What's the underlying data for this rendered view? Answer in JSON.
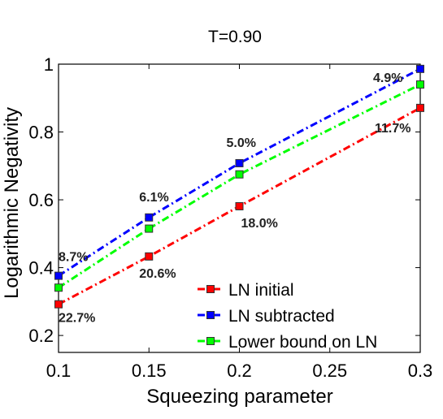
{
  "chart_data": {
    "type": "line",
    "title": "T=0.90",
    "xlabel": "Squeezing parameter",
    "ylabel": "Logarithmic Negativity",
    "xlim": [
      0.1,
      0.3
    ],
    "ylim": [
      0.15,
      1.0
    ],
    "x_ticks": [
      "0.1",
      "0.15",
      "0.2",
      "0.25",
      "0.3"
    ],
    "y_ticks": [
      "0.2",
      "0.4",
      "0.6",
      "0.8",
      "1"
    ],
    "x": [
      0.1,
      0.15,
      0.2,
      0.3
    ],
    "series": [
      {
        "name": "LN initial",
        "color": "#ff0000",
        "values": [
          0.292,
          0.433,
          0.581,
          0.871
        ]
      },
      {
        "name": "LN subtracted",
        "color": "#0000ff",
        "values": [
          0.376,
          0.548,
          0.708,
          0.986
        ]
      },
      {
        "name": "Lower bound on LN",
        "color": "#00ff00",
        "values": [
          0.341,
          0.515,
          0.675,
          0.94
        ]
      }
    ],
    "annotations": [
      {
        "text": "8.7%",
        "x": 0.1,
        "y": 0.376
      },
      {
        "text": "22.7%",
        "x": 0.1,
        "y": 0.292
      },
      {
        "text": "6.1%",
        "x": 0.15,
        "y": 0.548
      },
      {
        "text": "20.6%",
        "x": 0.15,
        "y": 0.433
      },
      {
        "text": "5.0%",
        "x": 0.2,
        "y": 0.708
      },
      {
        "text": "18.0%",
        "x": 0.2,
        "y": 0.581
      },
      {
        "text": "4.9%",
        "x": 0.3,
        "y": 0.986
      },
      {
        "text": "11.7%",
        "x": 0.3,
        "y": 0.871
      }
    ],
    "legend_position": "bottom-right",
    "grid": false
  }
}
